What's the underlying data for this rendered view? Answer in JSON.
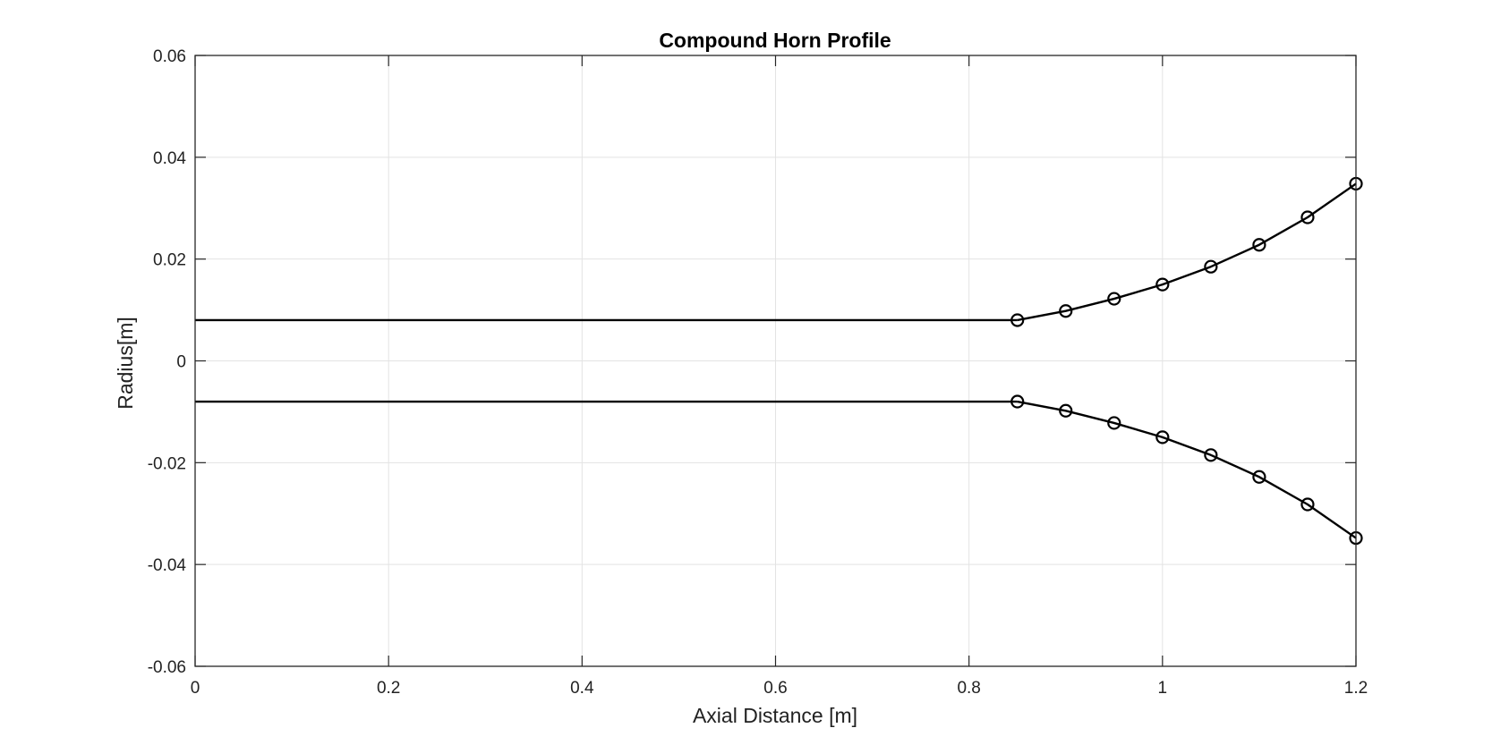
{
  "chart_data": {
    "type": "line",
    "title": "Compound Horn Profile",
    "xlabel": "Axial Distance [m]",
    "ylabel": "Radius[m]",
    "xlim": [
      0,
      1.2
    ],
    "ylim": [
      -0.06,
      0.06
    ],
    "xticks": [
      "0",
      "0.2",
      "0.4",
      "0.6",
      "0.8",
      "1",
      "1.2"
    ],
    "yticks": [
      "-0.06",
      "-0.04",
      "-0.02",
      "0",
      "0.02",
      "0.04",
      "0.06"
    ],
    "grid": true,
    "line_color": "#000000",
    "series": [
      {
        "marker": "none",
        "x": [
          0,
          0.85
        ],
        "y": [
          0.008,
          0.008
        ]
      },
      {
        "marker": "none",
        "x": [
          0,
          0.85
        ],
        "y": [
          -0.008,
          -0.008
        ]
      },
      {
        "marker": "circle",
        "x": [
          0.85,
          0.9,
          0.95,
          1.0,
          1.05,
          1.1,
          1.15,
          1.2
        ],
        "y": [
          0.008,
          0.0098,
          0.0122,
          0.015,
          0.0185,
          0.0228,
          0.0282,
          0.0348
        ]
      },
      {
        "marker": "circle",
        "x": [
          0.85,
          0.9,
          0.95,
          1.0,
          1.05,
          1.1,
          1.15,
          1.2
        ],
        "y": [
          -0.008,
          -0.0098,
          -0.0122,
          -0.015,
          -0.0185,
          -0.0228,
          -0.0282,
          -0.0348
        ]
      }
    ]
  }
}
